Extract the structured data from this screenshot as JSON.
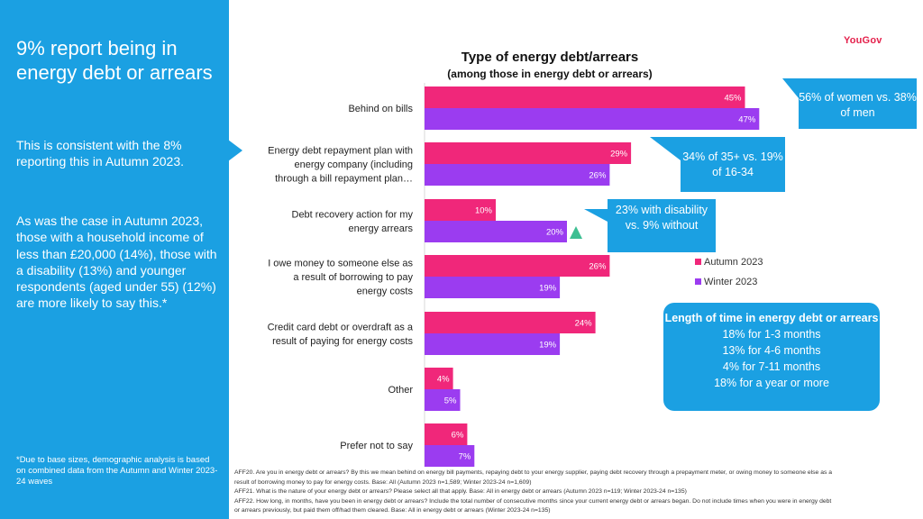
{
  "left_panel": {
    "title": "9% report being in energy debt or arrears",
    "paragraph1": "This is consistent with the 8% reporting this in Autumn 2023.",
    "paragraph2": "As was the case in Autumn 2023, those with a household income of less than £20,000 (14%), those with a disability (13%) and younger respondents (aged under 55) (12%) are more likely to say this.*",
    "footnote": "*Due to base sizes, demographic analysis is based on combined data from the Autumn and Winter 2023-24 waves"
  },
  "logo": "YouGov",
  "callouts": {
    "women": "56% of women vs. 38% of men",
    "age": "34% of 35+ vs. 19% of 16-34",
    "disability": "23% with disability vs. 9% without",
    "length": {
      "heading": "Length of time in energy debt or arrears",
      "lines": [
        "18% for 1-3 months",
        "13% for 4-6 months",
        "4% for 7-11 months",
        "18% for a year or more"
      ]
    }
  },
  "footnotes": [
    "AFF20. Are you in energy debt or arrears? By this we mean behind on energy bill payments, repaying debt to your energy supplier, paying debt recovery through a prepayment meter,  or owing money to someone else as a",
    "result of borrowing money to pay for energy costs. Base: All (Autumn 2023 n=1,589; Winter 2023-24 n=1,609)",
    "AFF21. What is the nature of your energy debt or arrears? Please select all that apply. Base: All in energy debt or arrears (Autumn 2023 n=119; Winter 2023-24 n=135)",
    "AFF22. How long, in months, have you been in energy debt or arrears? Include the total number of consecutive months since your current energy debt or arrears began. Do not include times when you were in energy debt",
    "or arrears previously, but paid them off/had them cleared. Base: All in energy debt or arrears (Winter 2023-24 n=135)"
  ],
  "colors": {
    "panel": "#1ba0e2",
    "autumn": "#f0277a",
    "winter": "#9b3cf0",
    "triangle": "#3dbf92"
  },
  "chart_data": {
    "type": "bar",
    "orientation": "horizontal",
    "title": "Type of energy debt/arrears",
    "subtitle": "(among those in energy debt or arrears)",
    "categories": [
      [
        "Behind on bills"
      ],
      [
        "Energy debt repayment plan with",
        "energy company (including",
        "through a bill repayment plan…"
      ],
      [
        "Debt recovery action for my",
        "energy arrears"
      ],
      [
        "I owe money to someone else as",
        "a result of borrowing to pay",
        "energy costs"
      ],
      [
        "Credit card debt or overdraft as a",
        "result of paying for energy costs"
      ],
      [
        "Other"
      ],
      [
        "Prefer not to say"
      ]
    ],
    "series": [
      {
        "name": "Autumn 2023",
        "values": [
          45,
          29,
          10,
          26,
          24,
          4,
          6
        ]
      },
      {
        "name": "Winter 2023",
        "values": [
          47,
          26,
          20,
          19,
          19,
          5,
          7
        ]
      }
    ],
    "value_suffix": "%",
    "legend": "right"
  }
}
